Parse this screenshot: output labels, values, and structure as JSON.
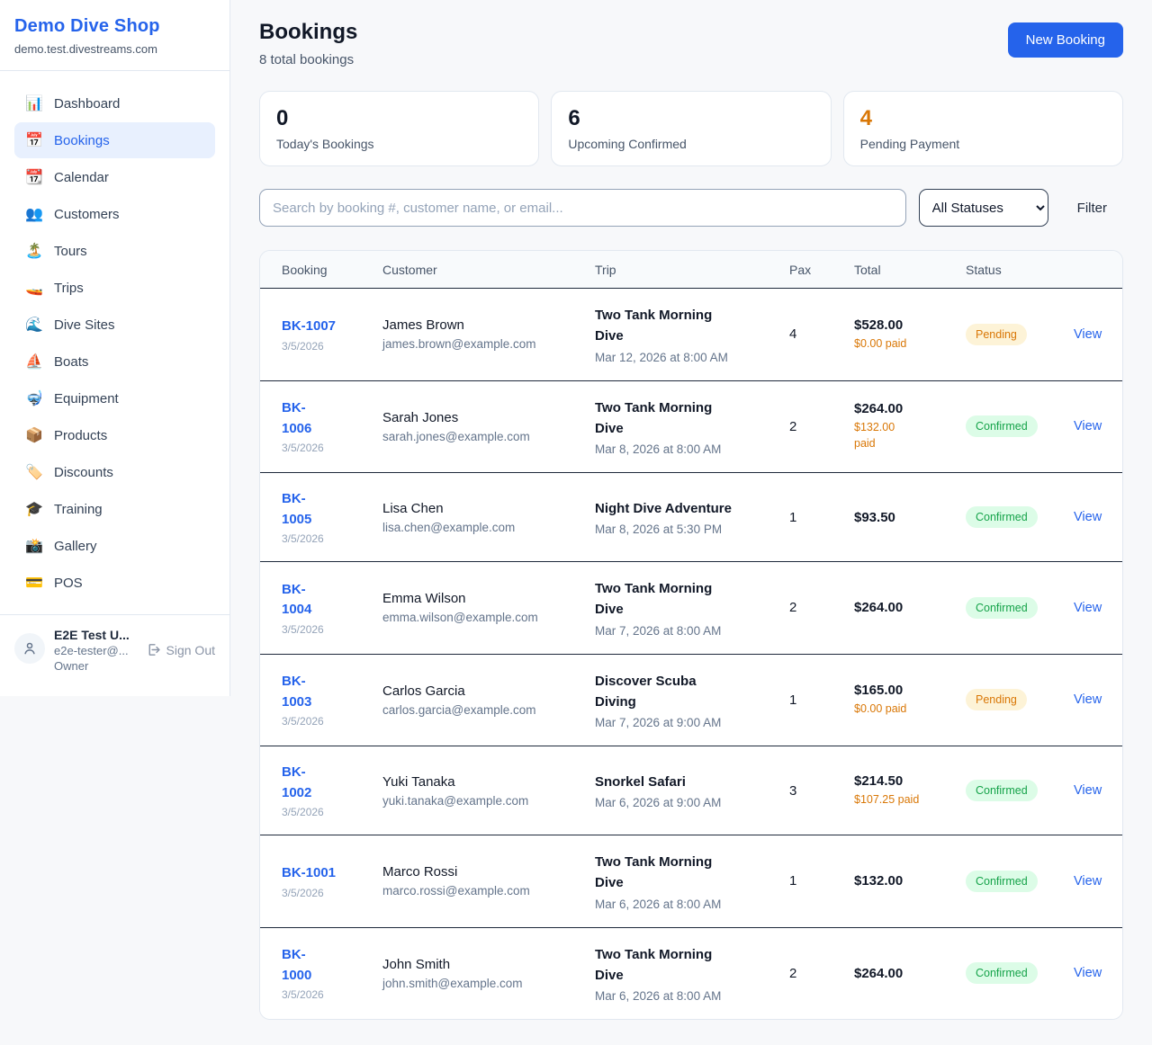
{
  "colors": {
    "accent": "#2563eb",
    "pending_text": "#d97706",
    "pending_bg": "#fdf3d7",
    "confirmed_text": "#16a34a",
    "confirmed_bg": "#dcfce7"
  },
  "sidebar": {
    "brand": "Demo Dive Shop",
    "domain": "demo.test.divestreams.com",
    "items": [
      {
        "icon": "📊",
        "icon_name": "dashboard-chart-icon",
        "label": "Dashboard",
        "active": false
      },
      {
        "icon": "📅",
        "icon_name": "bookings-calendar-icon",
        "label": "Bookings",
        "active": true
      },
      {
        "icon": "📆",
        "icon_name": "calendar-icon",
        "label": "Calendar",
        "active": false
      },
      {
        "icon": "👥",
        "icon_name": "customers-people-icon",
        "label": "Customers",
        "active": false
      },
      {
        "icon": "🏝️",
        "icon_name": "tours-island-icon",
        "label": "Tours",
        "active": false
      },
      {
        "icon": "🚤",
        "icon_name": "trips-speedboat-icon",
        "label": "Trips",
        "active": false
      },
      {
        "icon": "🌊",
        "icon_name": "dive-sites-wave-icon",
        "label": "Dive Sites",
        "active": false
      },
      {
        "icon": "⛵",
        "icon_name": "boats-sailboat-icon",
        "label": "Boats",
        "active": false
      },
      {
        "icon": "🤿",
        "icon_name": "equipment-mask-icon",
        "label": "Equipment",
        "active": false
      },
      {
        "icon": "📦",
        "icon_name": "products-package-icon",
        "label": "Products",
        "active": false
      },
      {
        "icon": "🏷️",
        "icon_name": "discounts-tag-icon",
        "label": "Discounts",
        "active": false
      },
      {
        "icon": "🎓",
        "icon_name": "training-grad-cap-icon",
        "label": "Training",
        "active": false
      },
      {
        "icon": "📸",
        "icon_name": "gallery-camera-icon",
        "label": "Gallery",
        "active": false
      },
      {
        "icon": "💳",
        "icon_name": "pos-card-icon",
        "label": "POS",
        "active": false
      }
    ],
    "user": {
      "name": "E2E Test U...",
      "email": "e2e-tester@...",
      "role": "Owner",
      "signout_label": "Sign Out"
    }
  },
  "header": {
    "title": "Bookings",
    "subtitle": "8 total bookings",
    "new_booking_label": "New Booking"
  },
  "stats": [
    {
      "value": "0",
      "label": "Today's Bookings",
      "accent": false
    },
    {
      "value": "6",
      "label": "Upcoming Confirmed",
      "accent": false
    },
    {
      "value": "4",
      "label": "Pending Payment",
      "accent": true
    }
  ],
  "filters": {
    "search_placeholder": "Search by booking #, customer name, or email...",
    "status_selected": "All Statuses",
    "filter_label": "Filter"
  },
  "table": {
    "columns": [
      "Booking",
      "Customer",
      "Trip",
      "Pax",
      "Total",
      "Status"
    ],
    "view_label": "View",
    "rows": [
      {
        "id": "BK-1007",
        "id_two_line": false,
        "date": "3/5/2026",
        "customer": "James Brown",
        "email": "james.brown@example.com",
        "trip": "Two Tank Morning Dive",
        "trip_time": "Mar 12, 2026 at 8:00 AM",
        "pax": "4",
        "total": "$528.00",
        "paid": "$0.00 paid",
        "paid_two_line": false,
        "status": "Pending"
      },
      {
        "id": "BK-1006",
        "id_two_line": true,
        "date": "3/5/2026",
        "customer": "Sarah Jones",
        "email": "sarah.jones@example.com",
        "trip": "Two Tank Morning Dive",
        "trip_time": "Mar 8, 2026 at 8:00 AM",
        "pax": "2",
        "total": "$264.00",
        "paid": "$132.00 paid",
        "paid_two_line": true,
        "status": "Confirmed"
      },
      {
        "id": "BK-1005",
        "id_two_line": true,
        "date": "3/5/2026",
        "customer": "Lisa Chen",
        "email": "lisa.chen@example.com",
        "trip": "Night Dive Adventure",
        "trip_time": "Mar 8, 2026 at 5:30 PM",
        "pax": "1",
        "total": "$93.50",
        "paid": null,
        "paid_two_line": false,
        "status": "Confirmed"
      },
      {
        "id": "BK-1004",
        "id_two_line": true,
        "date": "3/5/2026",
        "customer": "Emma Wilson",
        "email": "emma.wilson@example.com",
        "trip": "Two Tank Morning Dive",
        "trip_time": "Mar 7, 2026 at 8:00 AM",
        "pax": "2",
        "total": "$264.00",
        "paid": null,
        "paid_two_line": false,
        "status": "Confirmed"
      },
      {
        "id": "BK-1003",
        "id_two_line": true,
        "date": "3/5/2026",
        "customer": "Carlos Garcia",
        "email": "carlos.garcia@example.com",
        "trip": "Discover Scuba Diving",
        "trip_time": "Mar 7, 2026 at 9:00 AM",
        "pax": "1",
        "total": "$165.00",
        "paid": "$0.00 paid",
        "paid_two_line": false,
        "status": "Pending"
      },
      {
        "id": "BK-1002",
        "id_two_line": true,
        "date": "3/5/2026",
        "customer": "Yuki Tanaka",
        "email": "yuki.tanaka@example.com",
        "trip": "Snorkel Safari",
        "trip_time": "Mar 6, 2026 at 9:00 AM",
        "pax": "3",
        "total": "$214.50",
        "paid": "$107.25 paid",
        "paid_two_line": false,
        "status": "Confirmed"
      },
      {
        "id": "BK-1001",
        "id_two_line": false,
        "date": "3/5/2026",
        "customer": "Marco Rossi",
        "email": "marco.rossi@example.com",
        "trip": "Two Tank Morning Dive",
        "trip_time": "Mar 6, 2026 at 8:00 AM",
        "pax": "1",
        "total": "$132.00",
        "paid": null,
        "paid_two_line": false,
        "status": "Confirmed"
      },
      {
        "id": "BK-1000",
        "id_two_line": true,
        "date": "3/5/2026",
        "customer": "John Smith",
        "email": "john.smith@example.com",
        "trip": "Two Tank Morning Dive",
        "trip_time": "Mar 6, 2026 at 8:00 AM",
        "pax": "2",
        "total": "$264.00",
        "paid": null,
        "paid_two_line": false,
        "status": "Confirmed"
      }
    ]
  }
}
